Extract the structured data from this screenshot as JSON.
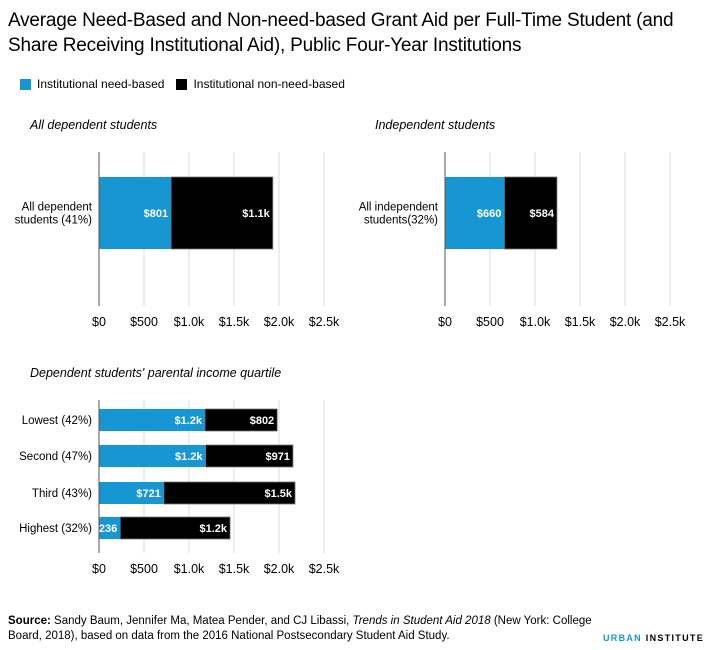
{
  "title": "Average Need-Based and Non-need-based Grant Aid per Full-Time Student (and Share Receiving Institutional Aid), Public Four-Year Institutions",
  "legend": [
    {
      "label": "Institutional need-based",
      "color": "#1696d2"
    },
    {
      "label": "Institutional non-need-based",
      "color": "#000000"
    }
  ],
  "chart_data": [
    {
      "type": "bar",
      "orientation": "horizontal",
      "stacked": true,
      "title": "All dependent students",
      "categories": [
        "All dependent students (41%)"
      ],
      "category_lines": [
        [
          "All dependent",
          "students (41%)"
        ]
      ],
      "series": [
        {
          "name": "Institutional need-based",
          "values": [
            801
          ],
          "labels": [
            "$801"
          ],
          "color": "#1696d2"
        },
        {
          "name": "Institutional non-need-based",
          "values": [
            1130
          ],
          "labels": [
            "$1.1k"
          ],
          "color": "#000000"
        }
      ],
      "xlim": [
        0,
        2500
      ],
      "xticks": [
        0,
        500,
        1000,
        1500,
        2000,
        2500
      ],
      "xtick_labels": [
        "$0",
        "$500",
        "$1.0k",
        "$1.5k",
        "$2.0k",
        "$2.5k"
      ],
      "grid": true
    },
    {
      "type": "bar",
      "orientation": "horizontal",
      "stacked": true,
      "title": "Independent students",
      "categories": [
        "All independent students(32%)"
      ],
      "category_lines": [
        [
          "All independent",
          "students(32%)"
        ]
      ],
      "series": [
        {
          "name": "Institutional need-based",
          "values": [
            660
          ],
          "labels": [
            "$660"
          ],
          "color": "#1696d2"
        },
        {
          "name": "Institutional non-need-based",
          "values": [
            584
          ],
          "labels": [
            "$584"
          ],
          "color": "#000000"
        }
      ],
      "xlim": [
        0,
        2500
      ],
      "xticks": [
        0,
        500,
        1000,
        1500,
        2000,
        2500
      ],
      "xtick_labels": [
        "$0",
        "$500",
        "$1.0k",
        "$1.5k",
        "$2.0k",
        "$2.5k"
      ],
      "grid": true
    },
    {
      "type": "bar",
      "orientation": "horizontal",
      "stacked": true,
      "title": "Dependent students' parental income quartile",
      "categories": [
        "Lowest (42%)",
        "Second (47%)",
        "Third (43%)",
        "Highest (32%)"
      ],
      "category_lines": [
        [
          "Lowest (42%)"
        ],
        [
          "Second (47%)"
        ],
        [
          "Third (43%)"
        ],
        [
          "Highest (32%)"
        ]
      ],
      "series": [
        {
          "name": "Institutional need-based",
          "values": [
            1178,
            1184,
            721,
            236
          ],
          "labels": [
            "$1.2k",
            "$1.2k",
            "$721",
            "$236"
          ],
          "color": "#1696d2"
        },
        {
          "name": "Institutional non-need-based",
          "values": [
            802,
            971,
            1457,
            1220
          ],
          "labels": [
            "$802",
            "$971",
            "$1.5k",
            "$1.2k"
          ],
          "color": "#000000"
        }
      ],
      "xlim": [
        0,
        2500
      ],
      "xticks": [
        0,
        500,
        1000,
        1500,
        2000,
        2500
      ],
      "xtick_labels": [
        "$0",
        "$500",
        "$1.0k",
        "$1.5k",
        "$2.0k",
        "$2.5k"
      ],
      "grid": true
    }
  ],
  "source": {
    "label": "Source:",
    "text_before": " Sandy Baum, Jennifer Ma, Matea Pender, and CJ Libassi, ",
    "italic": "Trends in Student Aid 2018",
    "text_after": " (New York: College Board, 2018), based on data from the 2016 National Postsecondary Student Aid Study."
  },
  "brand": {
    "first": "URBAN",
    "second": "INSTITUTE"
  }
}
